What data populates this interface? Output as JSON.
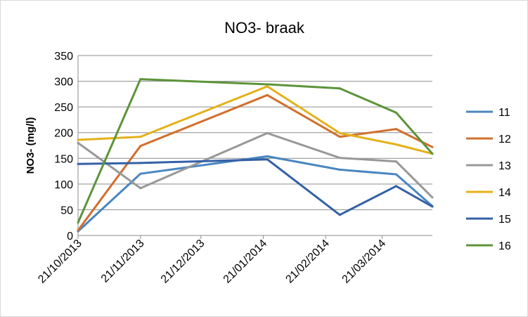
{
  "chart_data": {
    "type": "line",
    "title": "NO3- braak",
    "xlabel": "",
    "ylabel": "NO3- (mg/l)",
    "ylim": [
      0,
      350
    ],
    "yticks": [
      0,
      50,
      100,
      150,
      200,
      250,
      300,
      350
    ],
    "xlim": [
      "2013-10-21",
      "2014-04-15"
    ],
    "xtick_labels": [
      "21/10/2013",
      "21/11/2013",
      "21/12/2013",
      "21/01/2014",
      "21/02/2014",
      "21/03/2014"
    ],
    "xtick_dates": [
      "2013-10-21",
      "2013-11-21",
      "2013-12-21",
      "2014-01-21",
      "2014-02-21",
      "2014-03-21"
    ],
    "x": [
      "2013-10-21",
      "2013-11-21",
      "2014-01-23",
      "2014-02-28",
      "2014-03-28",
      "2014-04-15"
    ],
    "grid": true,
    "legend": "right",
    "series": [
      {
        "name": "11",
        "color": "#4a86c0",
        "values": [
          8,
          120,
          154,
          128,
          119,
          57
        ]
      },
      {
        "name": "12",
        "color": "#d0702e",
        "values": [
          10,
          174,
          273,
          192,
          207,
          172
        ]
      },
      {
        "name": "13",
        "color": "#989898",
        "values": [
          180,
          92,
          199,
          151,
          144,
          74
        ]
      },
      {
        "name": "14",
        "color": "#e3b119",
        "values": [
          186,
          192,
          290,
          199,
          177,
          159
        ]
      },
      {
        "name": "15",
        "color": "#3460a6",
        "values": [
          139,
          141,
          148,
          40,
          96,
          56
        ]
      },
      {
        "name": "16",
        "color": "#5c9439",
        "values": [
          25,
          304,
          294,
          286,
          239,
          159
        ]
      }
    ]
  }
}
